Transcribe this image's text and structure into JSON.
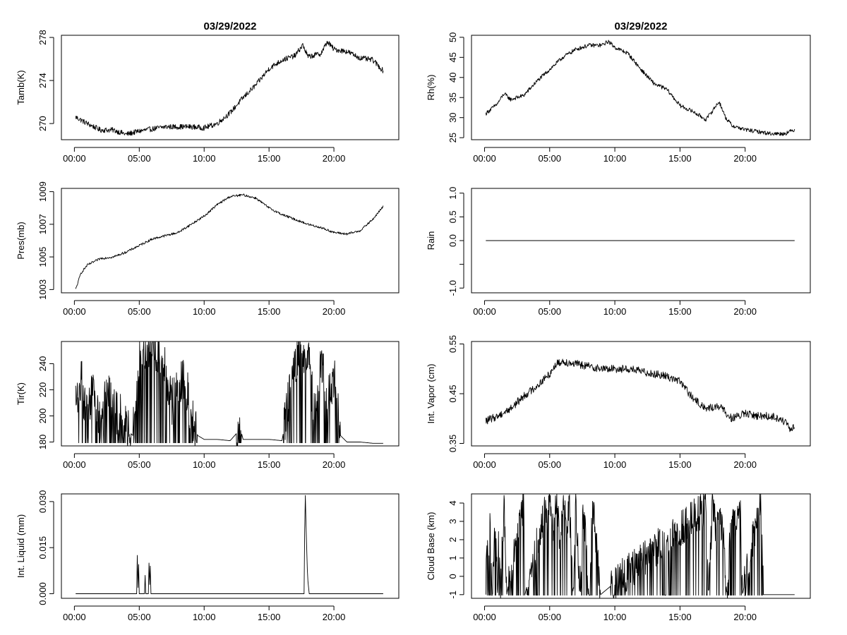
{
  "chart_data": [
    {
      "id": "tamb",
      "type": "line",
      "title": "03/29/2022",
      "xlabel": "",
      "ylabel": "Tamb(K)",
      "xlim": [
        -1,
        25
      ],
      "ylim": [
        268.5,
        278.2
      ],
      "yticks": [
        270,
        274,
        278
      ],
      "xticks": [
        "00:00",
        "05:00",
        "10:00",
        "15:00",
        "20:00"
      ],
      "series": [
        {
          "name": "Tamb(K)",
          "x": [
            0.1,
            1,
            2,
            3,
            4,
            5,
            6,
            7,
            8,
            9,
            10,
            11,
            12,
            13,
            14,
            15,
            16,
            17,
            17.6,
            18,
            19,
            19.5,
            20,
            21,
            22,
            23,
            23.8
          ],
          "values": [
            270.6,
            270.0,
            269.4,
            269.4,
            269.0,
            269.3,
            269.5,
            269.7,
            269.7,
            269.7,
            269.6,
            270.0,
            271.0,
            272.4,
            273.6,
            275.1,
            275.9,
            276.3,
            277.3,
            276.2,
            276.5,
            277.6,
            276.9,
            276.7,
            276.1,
            275.9,
            274.9
          ],
          "noise": 0.25
        }
      ]
    },
    {
      "id": "rh",
      "type": "line",
      "title": "03/29/2022",
      "xlabel": "",
      "ylabel": "Rh(%)",
      "xlim": [
        -1,
        25
      ],
      "ylim": [
        24.5,
        50.5
      ],
      "yticks": [
        25,
        30,
        35,
        40,
        45,
        50
      ],
      "xticks": [
        "00:00",
        "05:00",
        "10:00",
        "15:00",
        "20:00"
      ],
      "series": [
        {
          "name": "Rh(%)",
          "x": [
            0.1,
            1,
            1.5,
            2,
            3,
            4,
            5,
            6,
            7,
            8,
            9,
            9.5,
            10,
            11,
            12,
            13,
            14,
            15,
            16,
            17,
            18,
            18.5,
            19,
            20,
            21,
            22,
            23,
            23.8
          ],
          "values": [
            31.0,
            33.5,
            36.0,
            34.5,
            35.5,
            39.0,
            42.0,
            45.0,
            47.0,
            48.0,
            48.0,
            49.0,
            47.5,
            46.0,
            42.0,
            38.5,
            37.0,
            33.0,
            31.5,
            29.5,
            34.0,
            30.0,
            28.0,
            27.0,
            26.5,
            26.0,
            26.0,
            27.0
          ],
          "noise": 0.5
        }
      ]
    },
    {
      "id": "pres",
      "type": "line",
      "title": "",
      "xlabel": "",
      "ylabel": "Pres(mb)",
      "xlim": [
        -1,
        25
      ],
      "ylim": [
        1002.8,
        1009.2
      ],
      "yticks": [
        1003,
        1005,
        1007,
        1009
      ],
      "xticks": [
        "00:00",
        "05:00",
        "10:00",
        "15:00",
        "20:00"
      ],
      "series": [
        {
          "name": "Pres(mb)",
          "x": [
            0.1,
            0.5,
            1,
            2,
            3,
            4,
            5,
            6,
            7,
            8,
            9,
            10,
            11,
            12,
            13,
            14,
            15,
            16,
            17,
            18,
            19,
            20,
            21,
            22,
            23,
            23.8
          ],
          "values": [
            1003.0,
            1004.0,
            1004.5,
            1004.9,
            1005.0,
            1005.3,
            1005.7,
            1006.1,
            1006.3,
            1006.5,
            1007.0,
            1007.5,
            1008.2,
            1008.7,
            1008.8,
            1008.6,
            1008.0,
            1007.6,
            1007.3,
            1007.0,
            1006.8,
            1006.5,
            1006.4,
            1006.6,
            1007.3,
            1008.1
          ],
          "noise": 0.07
        }
      ]
    },
    {
      "id": "rain",
      "type": "line",
      "title": "",
      "xlabel": "",
      "ylabel": "Rain",
      "xlim": [
        -1,
        25
      ],
      "ylim": [
        -1.1,
        1.1
      ],
      "yticks": [
        -1.0,
        -0.5,
        0.0,
        0.5,
        1.0
      ],
      "yticklabels": [
        "-1.0",
        "",
        "0.0",
        "0.5",
        "1.0"
      ],
      "xticks": [
        "00:00",
        "05:00",
        "10:00",
        "15:00",
        "20:00"
      ],
      "series": [
        {
          "name": "Rain",
          "x": [
            0.1,
            23.8
          ],
          "values": [
            0,
            0
          ],
          "noise": 0
        }
      ]
    },
    {
      "id": "tir",
      "type": "line",
      "title": "",
      "xlabel": "",
      "ylabel": "Tir(K)",
      "xlim": [
        -1,
        25
      ],
      "ylim": [
        177,
        257
      ],
      "yticks": [
        180,
        200,
        220,
        240
      ],
      "xticks": [
        "00:00",
        "05:00",
        "10:00",
        "15:00",
        "20:00"
      ],
      "series": [
        {
          "name": "Tir(K)",
          "x": [
            0.1,
            0.5,
            1,
            1.5,
            2,
            2.5,
            3,
            3.5,
            4,
            4.5,
            5,
            5.5,
            6,
            6.5,
            7,
            7.5,
            8,
            8.5,
            9,
            9.5,
            10,
            11,
            12,
            12.8,
            13,
            14,
            15,
            16,
            17,
            17.5,
            18,
            18.5,
            19,
            19.5,
            20,
            20.5,
            21,
            22,
            23,
            23.8
          ],
          "values": [
            210,
            230,
            195,
            225,
            190,
            220,
            205,
            200,
            190,
            185,
            245,
            252,
            253,
            250,
            235,
            210,
            220,
            230,
            200,
            185,
            182,
            182,
            181,
            190,
            182,
            182,
            182,
            181,
            240,
            250,
            245,
            200,
            245,
            210,
            230,
            185,
            180,
            180,
            179,
            179
          ],
          "spiky": true,
          "noise": 18
        }
      ]
    },
    {
      "id": "vapor",
      "type": "line",
      "title": "",
      "xlabel": "",
      "ylabel": "Int. Vapor (cm)",
      "xlim": [
        -1,
        25
      ],
      "ylim": [
        0.345,
        0.555
      ],
      "yticks": [
        0.35,
        0.45,
        0.55
      ],
      "xticks": [
        "00:00",
        "05:00",
        "10:00",
        "15:00",
        "20:00"
      ],
      "series": [
        {
          "name": "Int. Vapor (cm)",
          "x": [
            0.1,
            1,
            2,
            3,
            4,
            5,
            5.5,
            6,
            7,
            8,
            9,
            10,
            11,
            12,
            13,
            14,
            15,
            16,
            17,
            18,
            19,
            20,
            21,
            22,
            23,
            23.5,
            23.8
          ],
          "values": [
            0.395,
            0.405,
            0.42,
            0.445,
            0.465,
            0.49,
            0.51,
            0.515,
            0.51,
            0.505,
            0.5,
            0.5,
            0.5,
            0.495,
            0.49,
            0.485,
            0.475,
            0.44,
            0.42,
            0.425,
            0.4,
            0.41,
            0.405,
            0.405,
            0.395,
            0.375,
            0.385
          ],
          "noise": 0.008
        }
      ]
    },
    {
      "id": "liquid",
      "type": "line",
      "title": "",
      "xlabel": "",
      "ylabel": "Int. Liquid (mm)",
      "xlim": [
        -1,
        25
      ],
      "ylim": [
        -0.0015,
        0.0325
      ],
      "yticks": [
        0.0,
        0.015,
        0.03
      ],
      "yticklabels": [
        "0.000",
        "0.015",
        "0.030"
      ],
      "xticks": [
        "00:00",
        "05:00",
        "10:00",
        "15:00",
        "20:00"
      ],
      "series": [
        {
          "name": "Int. Liquid (mm)",
          "x": [
            0.1,
            4.8,
            4.85,
            4.9,
            4.95,
            5.0,
            5.4,
            5.45,
            5.5,
            5.7,
            5.75,
            5.8,
            5.85,
            5.9,
            17.7,
            17.75,
            17.8,
            17.85,
            17.9,
            17.95,
            18.0,
            18.05,
            18.1,
            23.8
          ],
          "values": [
            0,
            0,
            0.0125,
            0.002,
            0.0095,
            0,
            0,
            0.006,
            0,
            0,
            0.01,
            0.003,
            0.009,
            0,
            0,
            0.021,
            0.032,
            0.022,
            0.015,
            0.008,
            0.004,
            0.002,
            0,
            0
          ],
          "noise": 0
        }
      ]
    },
    {
      "id": "cbase",
      "type": "line",
      "title": "",
      "xlabel": "",
      "ylabel": "Cloud Base (km)",
      "xlim": [
        -1,
        25
      ],
      "ylim": [
        -1.2,
        4.5
      ],
      "yticks": [
        -1,
        0,
        1,
        2,
        3,
        4
      ],
      "xticks": [
        "00:00",
        "05:00",
        "10:00",
        "15:00",
        "20:00"
      ],
      "series": [
        {
          "name": "Cloud Base (km)",
          "x": [
            0.1,
            0.2,
            0.3,
            0.4,
            0.6,
            0.8,
            1.0,
            1.1,
            1.2,
            1.5,
            1.7,
            3.0,
            3.1,
            4.7,
            4.8,
            5.0,
            5.2,
            5.5,
            5.8,
            6.0,
            6.3,
            6.5,
            6.8,
            7.0,
            7.3,
            7.6,
            8.0,
            8.3,
            8.6,
            8.9,
            17.0,
            17.2,
            17.5,
            17.8,
            18.0,
            18.3,
            18.6,
            19.0,
            19.3,
            19.6,
            19.8,
            21.0,
            21.2,
            21.4,
            23.8
          ],
          "values": [
            -1,
            2.8,
            -1,
            3.7,
            -1,
            3.5,
            -1,
            2.6,
            -1,
            3.7,
            -1,
            4.0,
            -1,
            3.8,
            2.5,
            4.4,
            2.3,
            4.2,
            2.0,
            4.4,
            2.5,
            4.4,
            -1,
            4.2,
            -1,
            3.8,
            -1,
            4.2,
            1.5,
            -1,
            3.8,
            -1,
            4.2,
            2.0,
            3.6,
            2.2,
            -1,
            4.2,
            3.0,
            4.2,
            -1,
            3.5,
            4.2,
            -1,
            -1
          ],
          "spiky": true,
          "noise": 1.0
        }
      ]
    }
  ]
}
